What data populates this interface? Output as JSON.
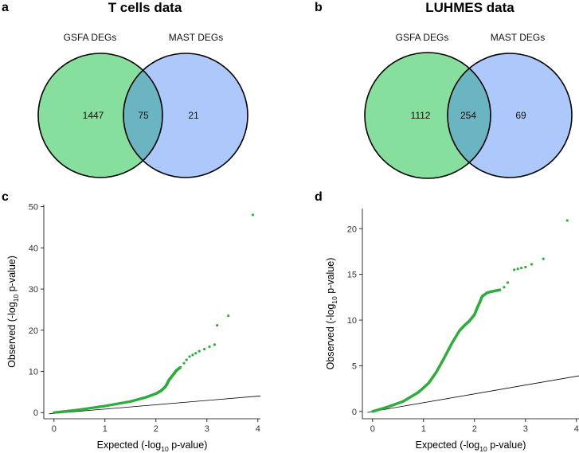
{
  "colors": {
    "set_a": "#86df9c",
    "set_b": "#adc9fb",
    "overlap": "#6bb5c2",
    "points": "#2eae3c"
  },
  "panels": {
    "a": {
      "letter": "a",
      "title": "T cells data"
    },
    "b": {
      "letter": "b",
      "title": "LUHMES data"
    },
    "c": {
      "letter": "c"
    },
    "d": {
      "letter": "d"
    }
  },
  "chart_data": [
    {
      "panel": "a",
      "type": "venn",
      "title": "T cells data",
      "sets": [
        {
          "name": "GSFA DEGs",
          "only": 1447
        },
        {
          "name": "MAST DEGs",
          "only": 21
        }
      ],
      "overlap": 75
    },
    {
      "panel": "b",
      "type": "venn",
      "title": "LUHMES data",
      "sets": [
        {
          "name": "GSFA DEGs",
          "only": 1112
        },
        {
          "name": "MAST DEGs",
          "only": 69
        }
      ],
      "overlap": 254
    },
    {
      "panel": "c",
      "type": "scatter",
      "subtype": "qq-plot",
      "xlabel_main": "Expected (-log",
      "xlabel_sub": "10",
      "xlabel_tail": " p-value)",
      "ylabel_main": "Observed (-log",
      "ylabel_sub": "10",
      "ylabel_tail": " p-value)",
      "xlim": [
        -0.2,
        4.05
      ],
      "ylim": [
        -1.5,
        50.5
      ],
      "xticks": [
        0,
        1,
        2,
        3,
        4
      ],
      "yticks": [
        0,
        10,
        20,
        30,
        40,
        50
      ],
      "reference_line": {
        "x": [
          -0.1,
          4.05
        ],
        "y": [
          -0.3,
          4.05
        ]
      },
      "curve": [
        [
          0,
          0
        ],
        [
          0.5,
          0.7
        ],
        [
          1.0,
          1.6
        ],
        [
          1.5,
          2.7
        ],
        [
          1.8,
          3.7
        ],
        [
          2.0,
          4.6
        ],
        [
          2.1,
          5.3
        ],
        [
          2.18,
          6.2
        ],
        [
          2.22,
          7.0
        ],
        [
          2.25,
          7.8
        ],
        [
          2.3,
          8.6
        ],
        [
          2.35,
          9.4
        ],
        [
          2.4,
          10.2
        ],
        [
          2.48,
          11.0
        ]
      ],
      "outliers": [
        [
          2.55,
          12.0
        ],
        [
          2.6,
          12.8
        ],
        [
          2.66,
          13.6
        ],
        [
          2.72,
          14.0
        ],
        [
          2.78,
          14.4
        ],
        [
          2.85,
          14.9
        ],
        [
          2.95,
          15.4
        ],
        [
          3.05,
          16.0
        ],
        [
          3.15,
          16.5
        ],
        [
          3.2,
          21.2
        ],
        [
          3.42,
          23.5
        ],
        [
          3.9,
          48.0
        ]
      ]
    },
    {
      "panel": "d",
      "type": "scatter",
      "subtype": "qq-plot",
      "xlabel_main": "Expected (-log",
      "xlabel_sub": "10",
      "xlabel_tail": " p-value)",
      "ylabel_main": "Observed (-log",
      "ylabel_sub": "10",
      "ylabel_tail": " p-value)",
      "xlim": [
        -0.2,
        4.05
      ],
      "ylim": [
        -0.8,
        22.2
      ],
      "xticks": [
        0,
        1,
        2,
        3,
        4
      ],
      "yticks": [
        0,
        5,
        10,
        15,
        20
      ],
      "reference_line": {
        "x": [
          -0.1,
          4.05
        ],
        "y": [
          -0.1,
          3.9
        ]
      },
      "curve": [
        [
          0,
          0
        ],
        [
          0.3,
          0.5
        ],
        [
          0.6,
          1.1
        ],
        [
          0.9,
          2.1
        ],
        [
          1.1,
          3.1
        ],
        [
          1.25,
          4.3
        ],
        [
          1.4,
          5.8
        ],
        [
          1.55,
          7.4
        ],
        [
          1.7,
          8.8
        ],
        [
          1.8,
          9.4
        ],
        [
          1.9,
          9.9
        ],
        [
          2.0,
          10.6
        ],
        [
          2.05,
          11.3
        ],
        [
          2.1,
          11.9
        ],
        [
          2.15,
          12.6
        ],
        [
          2.25,
          13.0
        ],
        [
          2.4,
          13.2
        ],
        [
          2.5,
          13.3
        ]
      ],
      "outliers": [
        [
          2.58,
          13.6
        ],
        [
          2.65,
          14.1
        ],
        [
          2.78,
          15.5
        ],
        [
          2.85,
          15.6
        ],
        [
          2.92,
          15.7
        ],
        [
          3.0,
          15.8
        ],
        [
          3.12,
          16.1
        ],
        [
          3.35,
          16.7
        ],
        [
          3.82,
          20.9
        ]
      ]
    }
  ]
}
